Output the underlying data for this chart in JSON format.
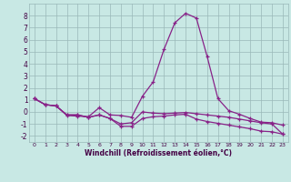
{
  "x": [
    0,
    1,
    2,
    3,
    4,
    5,
    6,
    7,
    8,
    9,
    10,
    11,
    12,
    13,
    14,
    15,
    16,
    17,
    18,
    19,
    20,
    21,
    22,
    23
  ],
  "line1": [
    1.1,
    0.6,
    0.5,
    -0.3,
    -0.35,
    -0.4,
    0.35,
    -0.25,
    -0.3,
    -0.45,
    1.3,
    2.5,
    5.2,
    7.4,
    8.2,
    7.8,
    4.6,
    1.1,
    0.1,
    -0.2,
    -0.55,
    -0.85,
    -0.9,
    -1.1
  ],
  "line2": [
    1.1,
    0.6,
    0.5,
    -0.25,
    -0.25,
    -0.45,
    -0.25,
    -0.55,
    -1.0,
    -0.9,
    0.0,
    -0.1,
    -0.15,
    -0.1,
    -0.05,
    -0.15,
    -0.25,
    -0.35,
    -0.45,
    -0.6,
    -0.75,
    -0.9,
    -1.0,
    -1.85
  ],
  "line3": [
    1.1,
    0.6,
    0.5,
    -0.25,
    -0.25,
    -0.45,
    -0.25,
    -0.55,
    -1.2,
    -1.2,
    -0.55,
    -0.4,
    -0.35,
    -0.25,
    -0.2,
    -0.6,
    -0.8,
    -0.95,
    -1.1,
    -1.25,
    -1.4,
    -1.6,
    -1.65,
    -1.85
  ],
  "line_color": "#882288",
  "bg_color": "#c8e8e4",
  "grid_color": "#9ab8b8",
  "xlabel": "Windchill (Refroidissement éolien,°C)",
  "ylim": [
    -2.5,
    9.0
  ],
  "xlim": [
    -0.5,
    23.5
  ],
  "yticks": [
    -2,
    -1,
    0,
    1,
    2,
    3,
    4,
    5,
    6,
    7,
    8
  ],
  "xticks": [
    0,
    1,
    2,
    3,
    4,
    5,
    6,
    7,
    8,
    9,
    10,
    11,
    12,
    13,
    14,
    15,
    16,
    17,
    18,
    19,
    20,
    21,
    22,
    23
  ]
}
